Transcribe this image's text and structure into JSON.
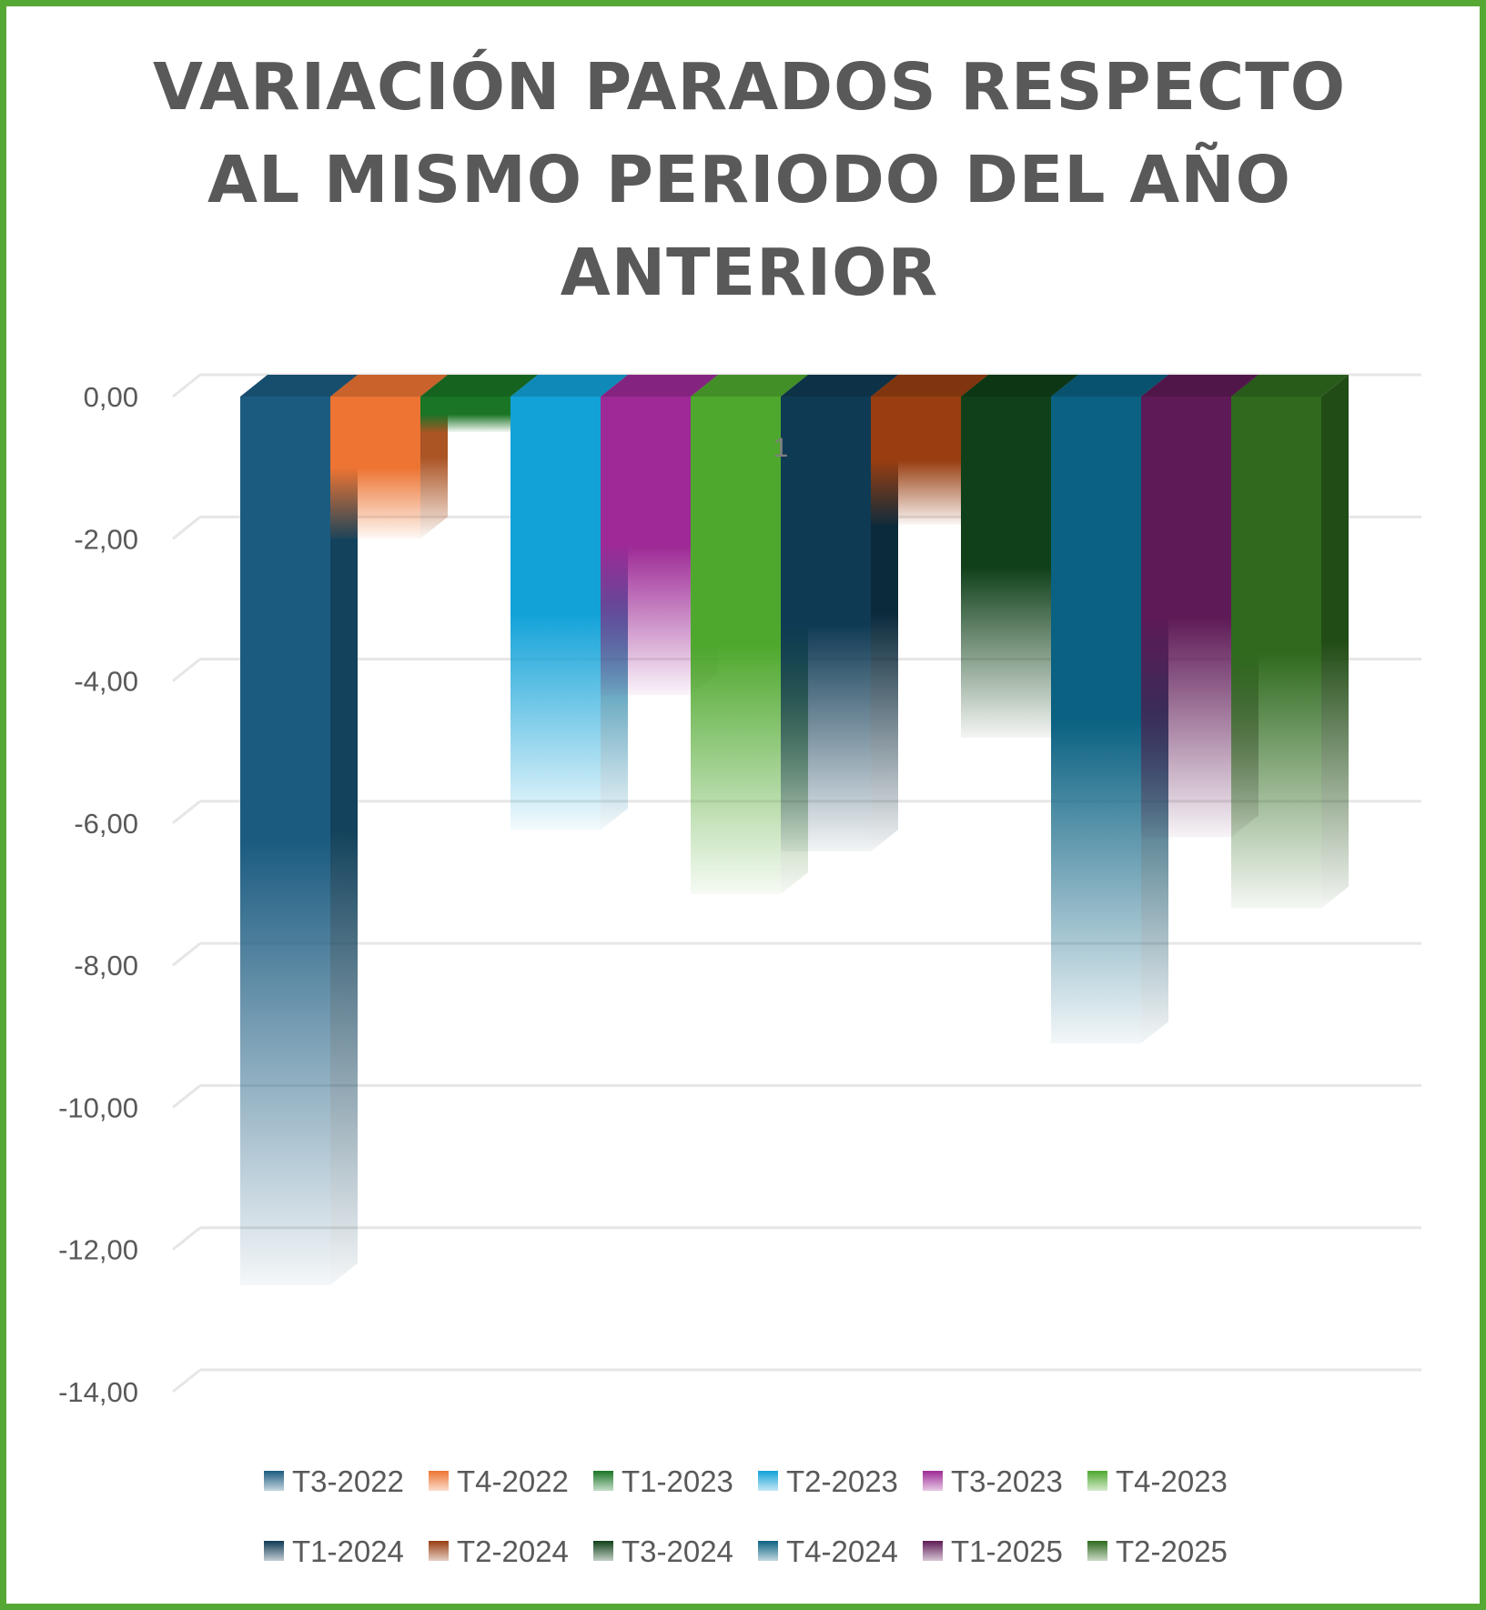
{
  "chart_data": {
    "type": "bar",
    "title_lines": [
      "VARIACIÓN PARADOS RESPECTO",
      "AL MISMO PERIODO DEL AÑO",
      "ANTERIOR"
    ],
    "categories": [
      "1"
    ],
    "ylim": [
      -14,
      0
    ],
    "yticks": [
      0,
      -2,
      -4,
      -6,
      -8,
      -10,
      -12,
      -14
    ],
    "ytick_labels": [
      "0,00",
      "-2,00",
      "-4,00",
      "-6,00",
      "-8,00",
      "-10,00",
      "-12,00",
      "-14,00"
    ],
    "grid": true,
    "legend_position": "bottom",
    "series": [
      {
        "name": "T3-2022",
        "values": [
          -12.5
        ],
        "color": "#1b5b80"
      },
      {
        "name": "T4-2022",
        "values": [
          -2.0
        ],
        "color": "#ed7432"
      },
      {
        "name": "T1-2023",
        "values": [
          -0.5
        ],
        "color": "#1a7526"
      },
      {
        "name": "T2-2023",
        "values": [
          -6.1
        ],
        "color": "#12a2d8"
      },
      {
        "name": "T3-2023",
        "values": [
          -4.2
        ],
        "color": "#9d2a96"
      },
      {
        "name": "T4-2023",
        "values": [
          -7.0
        ],
        "color": "#4fa82e"
      },
      {
        "name": "T1-2024",
        "values": [
          -6.4
        ],
        "color": "#0f3a54"
      },
      {
        "name": "T2-2024",
        "values": [
          -1.8
        ],
        "color": "#983e11"
      },
      {
        "name": "T3-2024",
        "values": [
          -4.8
        ],
        "color": "#0f4019"
      },
      {
        "name": "T4-2024",
        "values": [
          -9.1
        ],
        "color": "#0a6182"
      },
      {
        "name": "T1-2025",
        "values": [
          -6.2
        ],
        "color": "#5e1a56"
      },
      {
        "name": "T2-2025",
        "values": [
          -7.2
        ],
        "color": "#2f6a1e"
      }
    ]
  }
}
